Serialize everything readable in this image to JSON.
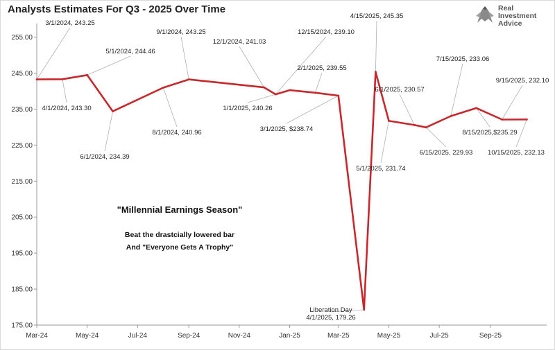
{
  "title": "Analysts Estimates For Q3 - 2025 Over Time",
  "logo": {
    "line1": "Real",
    "line2": "Investment",
    "line3": "Advice"
  },
  "colors": {
    "line": "#c8282b",
    "connector": "#b0b0b0",
    "axis": "#999999"
  },
  "chart_data": {
    "type": "line",
    "title": "Analysts Estimates For Q3 - 2025 Over Time",
    "xlabel": "",
    "ylabel": "",
    "ylim": [
      175,
      258
    ],
    "yticks": [
      175,
      185,
      195,
      205,
      215,
      225,
      235,
      245,
      255
    ],
    "ytick_labels": [
      "175.00",
      "185.00",
      "195.00",
      "205.00",
      "215.00",
      "225.00",
      "235.00",
      "245.00",
      "255.00"
    ],
    "xlim": [
      "2024-03-01",
      "2025-11-08"
    ],
    "xticks": [
      "2024-03-01",
      "2024-05-01",
      "2024-07-01",
      "2024-09-01",
      "2024-11-01",
      "2025-01-01",
      "2025-03-01",
      "2025-05-01",
      "2025-07-01",
      "2025-09-01"
    ],
    "xtick_labels": [
      "Mar-24",
      "May-24",
      "Jul-24",
      "Sep-24",
      "Nov-24",
      "Jan-25",
      "Mar-25",
      "May-25",
      "Jul-25",
      "Sep-25"
    ],
    "grid": false,
    "legend": "none",
    "series": [
      {
        "x": [
          "2024-03-01",
          "2024-04-01",
          "2024-05-01",
          "2024-06-01",
          "2024-08-01",
          "2024-09-01",
          "2024-12-01",
          "2024-12-15",
          "2025-01-01",
          "2025-02-01",
          "2025-03-01",
          "2025-04-01",
          "2025-04-15",
          "2025-05-01",
          "2025-06-01",
          "2025-06-15",
          "2025-07-15",
          "2025-08-15",
          "2025-09-15",
          "2025-10-15"
        ],
        "y": [
          243.25,
          243.3,
          244.46,
          234.39,
          240.96,
          243.25,
          241.03,
          239.1,
          240.26,
          239.55,
          238.74,
          179.26,
          245.35,
          231.74,
          230.57,
          229.93,
          233.06,
          235.29,
          232.1,
          232.13
        ]
      }
    ],
    "point_labels": [
      {
        "x": "2024-03-01",
        "text": "3/1/2024,  243.25"
      },
      {
        "x": "2024-04-01",
        "text": "4/1/2024,  243.30"
      },
      {
        "x": "2024-05-01",
        "text": "5/1/2024,  244.46"
      },
      {
        "x": "2024-06-01",
        "text": "6/1/2024, 234.39"
      },
      {
        "x": "2024-08-01",
        "text": "8/1/2024,  240.96"
      },
      {
        "x": "2024-09-01",
        "text": "9/1/2024,  243.25"
      },
      {
        "x": "2024-12-01",
        "text": "12/1/2024,  241.03"
      },
      {
        "x": "2024-12-15",
        "text": "12/15/2024,  239.10"
      },
      {
        "x": "2025-01-01",
        "text": "1/1/2025,  240.26"
      },
      {
        "x": "2025-02-01",
        "text": "2/1/2025,  239.55"
      },
      {
        "x": "2025-03-01",
        "text": "3/1/2025, $238.74"
      },
      {
        "x": "2025-04-01",
        "text": "4/1/2025,  179.26"
      },
      {
        "x": "2025-04-15",
        "text": "4/15/2025,  245.35"
      },
      {
        "x": "2025-05-01",
        "text": "5/1/2025,  231.74"
      },
      {
        "x": "2025-06-01",
        "text": "6/1/2025,  230.57"
      },
      {
        "x": "2025-06-15",
        "text": "6/15/2025,  229.93"
      },
      {
        "x": "2025-07-15",
        "text": "7/15/2025,  233.06"
      },
      {
        "x": "2025-08-15",
        "text": "8/15/2025,$235.29"
      },
      {
        "x": "2025-09-15",
        "text": "9/15/2025,  232.10"
      },
      {
        "x": "2025-10-15",
        "text": "10/15/2025,  232.13"
      }
    ],
    "annotations": [
      {
        "text": "Liberation Day"
      },
      {
        "text": "\"Millennial Earnings Season\""
      },
      {
        "text": "Beat the drastcially lowered bar"
      },
      {
        "text": "And \"Everyone Gets A Trophy\""
      }
    ]
  }
}
